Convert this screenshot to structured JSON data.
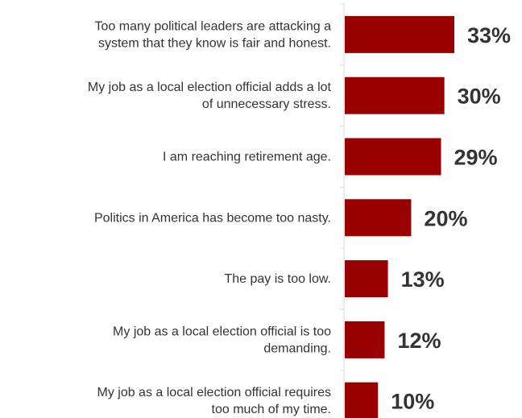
{
  "chart_data": {
    "type": "bar",
    "orientation": "horizontal",
    "categories": [
      [
        "Too many political leaders are attacking a",
        "system that they know is fair and honest."
      ],
      [
        "My job as a local election official adds a lot",
        "of unnecessary stress."
      ],
      [
        "I am reaching retirement age."
      ],
      [
        "Politics in America has become too nasty."
      ],
      [
        "The pay is too low."
      ],
      [
        "My job as a local election official is too",
        "demanding."
      ],
      [
        "My job as a local election official requires",
        "too much of my time."
      ]
    ],
    "values": [
      33,
      30,
      29,
      20,
      13,
      12,
      10
    ],
    "data_labels": [
      "33%",
      "30%",
      "29%",
      "20%",
      "13%",
      "12%",
      "10%"
    ],
    "bar_color": "#990000",
    "axis_color": "#d9d9d9",
    "text_color": "#333333",
    "xlim": [
      0,
      33
    ],
    "grid": false,
    "legend": "none"
  }
}
